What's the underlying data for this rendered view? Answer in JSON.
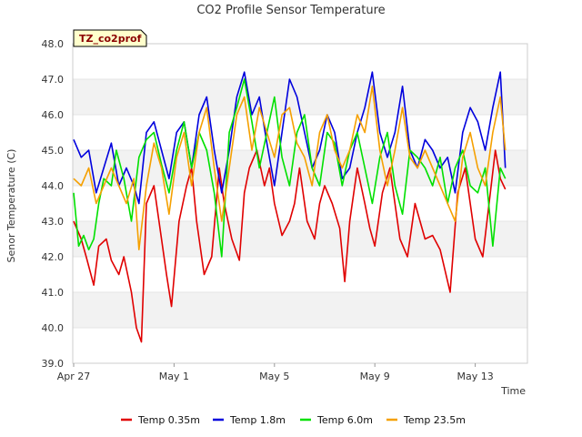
{
  "chart_data": {
    "type": "line",
    "title": "CO2 Profile Sensor Temperature",
    "site_badge": "TZ_co2prof",
    "xlabel": "Time",
    "ylabel": "Senor Temperature (C)",
    "x_ticks": [
      "Apr 27",
      "May 1",
      "May 5",
      "May 9",
      "May 13"
    ],
    "y_ticks": [
      "39.0",
      "40.0",
      "41.0",
      "42.0",
      "43.0",
      "44.0",
      "45.0",
      "46.0",
      "47.0",
      "48.0"
    ],
    "ylim": [
      39.0,
      48.0
    ],
    "xlim_days": [
      0,
      18
    ],
    "grid": "horizontal bands",
    "legend_position": "bottom",
    "colors": {
      "Temp 0.35m": "#e00000",
      "Temp 1.8m": "#0000dd",
      "Temp 6.0m": "#00e000",
      "Temp 23.5m": "#f5a000"
    },
    "series": [
      {
        "name": "Temp 0.35m",
        "x": [
          0.0,
          0.3,
          0.5,
          0.8,
          1.0,
          1.3,
          1.5,
          1.8,
          2.0,
          2.3,
          2.5,
          2.7,
          2.9,
          3.2,
          3.5,
          3.7,
          3.9,
          4.2,
          4.5,
          4.7,
          4.9,
          5.2,
          5.5,
          5.8,
          6.0,
          6.3,
          6.6,
          6.8,
          7.0,
          7.3,
          7.6,
          7.8,
          8.0,
          8.3,
          8.6,
          8.8,
          9.0,
          9.3,
          9.6,
          9.8,
          10.0,
          10.3,
          10.6,
          10.8,
          11.0,
          11.3,
          11.6,
          11.8,
          12.0,
          12.3,
          12.6,
          12.8,
          13.0,
          13.3,
          13.6,
          13.8,
          14.0,
          14.3,
          14.6,
          14.8,
          15.0,
          15.3,
          15.6,
          15.8,
          16.0,
          16.3,
          16.6,
          16.8,
          17.0,
          17.2
        ],
        "y": [
          43.0,
          42.5,
          42.0,
          41.2,
          42.3,
          42.5,
          41.9,
          41.5,
          42.0,
          41.0,
          40.0,
          39.6,
          43.5,
          44.0,
          42.5,
          41.5,
          40.6,
          43.0,
          44.0,
          44.5,
          43.0,
          41.5,
          42.0,
          44.5,
          43.5,
          42.5,
          41.9,
          43.8,
          44.5,
          45.0,
          44.0,
          44.5,
          43.5,
          42.6,
          43.0,
          43.5,
          44.5,
          43.0,
          42.5,
          43.5,
          44.0,
          43.5,
          42.8,
          41.3,
          43.0,
          44.5,
          43.5,
          42.8,
          42.3,
          43.8,
          44.5,
          43.5,
          42.5,
          42.0,
          43.5,
          43.0,
          42.5,
          42.6,
          42.2,
          41.6,
          41.0,
          43.8,
          44.5,
          43.5,
          42.5,
          42.0,
          43.8,
          45.0,
          44.2,
          43.9
        ]
      },
      {
        "name": "Temp 1.8m",
        "x": [
          0.0,
          0.3,
          0.6,
          0.9,
          1.2,
          1.5,
          1.8,
          2.1,
          2.4,
          2.6,
          2.9,
          3.2,
          3.5,
          3.8,
          4.1,
          4.4,
          4.7,
          5.0,
          5.3,
          5.6,
          5.9,
          6.2,
          6.5,
          6.8,
          7.1,
          7.4,
          7.7,
          8.0,
          8.3,
          8.6,
          8.9,
          9.2,
          9.5,
          9.8,
          10.1,
          10.4,
          10.7,
          11.0,
          11.3,
          11.6,
          11.9,
          12.2,
          12.5,
          12.8,
          13.1,
          13.4,
          13.7,
          14.0,
          14.3,
          14.6,
          14.9,
          15.2,
          15.5,
          15.8,
          16.1,
          16.4,
          16.7,
          17.0,
          17.2
        ],
        "y": [
          45.3,
          44.8,
          45.0,
          43.8,
          44.5,
          45.2,
          44.0,
          44.5,
          44.0,
          43.5,
          45.5,
          45.8,
          45.0,
          44.2,
          45.5,
          45.8,
          44.5,
          46.0,
          46.5,
          45.0,
          43.8,
          45.0,
          46.5,
          47.2,
          46.0,
          46.5,
          45.2,
          44.0,
          45.5,
          47.0,
          46.5,
          45.5,
          44.5,
          45.0,
          46.0,
          45.5,
          44.2,
          44.5,
          45.5,
          46.2,
          47.2,
          45.5,
          44.8,
          45.5,
          46.8,
          45.0,
          44.5,
          45.3,
          45.0,
          44.5,
          44.8,
          43.8,
          45.5,
          46.2,
          45.8,
          45.0,
          46.2,
          47.2,
          44.5
        ]
      },
      {
        "name": "Temp 6.0m",
        "x": [
          0.0,
          0.2,
          0.4,
          0.6,
          0.8,
          1.0,
          1.2,
          1.5,
          1.7,
          2.0,
          2.3,
          2.6,
          2.9,
          3.2,
          3.5,
          3.8,
          4.1,
          4.4,
          4.7,
          5.0,
          5.3,
          5.6,
          5.9,
          6.2,
          6.5,
          6.8,
          7.1,
          7.4,
          7.7,
          8.0,
          8.3,
          8.6,
          8.9,
          9.2,
          9.5,
          9.8,
          10.1,
          10.4,
          10.7,
          11.0,
          11.3,
          11.6,
          11.9,
          12.2,
          12.5,
          12.8,
          13.1,
          13.4,
          13.7,
          14.0,
          14.3,
          14.6,
          14.9,
          15.2,
          15.5,
          15.8,
          16.1,
          16.4,
          16.7,
          17.0,
          17.2
        ],
        "y": [
          43.8,
          42.3,
          42.6,
          42.2,
          42.5,
          43.5,
          44.2,
          44.0,
          45.0,
          44.2,
          43.0,
          44.8,
          45.3,
          45.5,
          44.6,
          43.8,
          45.0,
          45.8,
          44.5,
          45.5,
          45.0,
          43.8,
          42.0,
          45.5,
          46.2,
          47.0,
          45.8,
          44.5,
          45.5,
          46.5,
          44.8,
          44.0,
          45.5,
          46.0,
          44.5,
          44.0,
          45.5,
          45.2,
          44.0,
          45.0,
          45.5,
          44.5,
          43.5,
          44.8,
          45.5,
          44.0,
          43.2,
          45.0,
          44.8,
          44.5,
          44.0,
          44.8,
          43.5,
          44.5,
          45.0,
          44.0,
          43.8,
          44.5,
          42.3,
          44.5,
          44.2
        ]
      },
      {
        "name": "Temp 23.5m",
        "x": [
          0.0,
          0.3,
          0.6,
          0.9,
          1.2,
          1.5,
          1.8,
          2.1,
          2.4,
          2.6,
          2.9,
          3.2,
          3.5,
          3.8,
          4.1,
          4.4,
          4.7,
          5.0,
          5.3,
          5.6,
          5.9,
          6.2,
          6.5,
          6.8,
          7.1,
          7.4,
          7.7,
          8.0,
          8.3,
          8.6,
          8.9,
          9.2,
          9.5,
          9.8,
          10.1,
          10.4,
          10.7,
          11.0,
          11.3,
          11.6,
          11.9,
          12.2,
          12.5,
          12.8,
          13.1,
          13.4,
          13.7,
          14.0,
          14.3,
          14.6,
          14.9,
          15.2,
          15.5,
          15.8,
          16.1,
          16.4,
          16.7,
          17.0,
          17.2
        ],
        "y": [
          44.2,
          44.0,
          44.5,
          43.5,
          44.0,
          44.5,
          44.0,
          43.5,
          44.2,
          42.2,
          44.0,
          45.2,
          44.5,
          43.2,
          44.8,
          45.5,
          44.0,
          45.5,
          46.2,
          44.5,
          43.0,
          44.5,
          46.0,
          46.5,
          45.0,
          46.2,
          45.5,
          44.8,
          46.0,
          46.2,
          45.2,
          44.8,
          44.0,
          45.5,
          46.0,
          45.0,
          44.5,
          45.0,
          46.0,
          45.5,
          46.8,
          45.0,
          44.0,
          45.0,
          46.2,
          44.8,
          44.5,
          45.0,
          44.5,
          44.0,
          43.5,
          43.0,
          44.8,
          45.5,
          44.5,
          44.0,
          45.5,
          46.5,
          45.0
        ]
      }
    ]
  }
}
